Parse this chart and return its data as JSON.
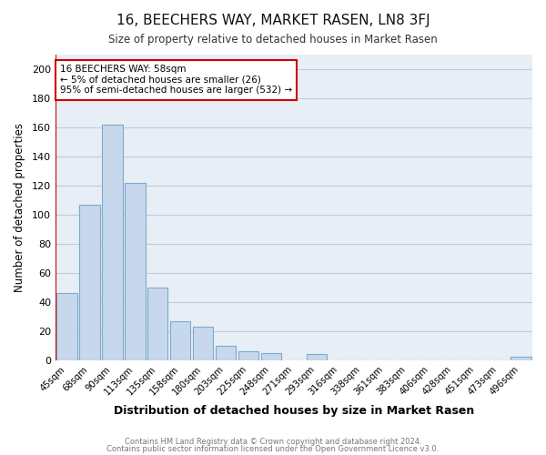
{
  "title": "16, BEECHERS WAY, MARKET RASEN, LN8 3FJ",
  "subtitle": "Size of property relative to detached houses in Market Rasen",
  "xlabel": "Distribution of detached houses by size in Market Rasen",
  "ylabel": "Number of detached properties",
  "bar_color": "#c8d8ec",
  "bar_edge_color": "#7aabcc",
  "annotation_line_color": "#cc0000",
  "categories": [
    "45sqm",
    "68sqm",
    "90sqm",
    "113sqm",
    "135sqm",
    "158sqm",
    "180sqm",
    "203sqm",
    "225sqm",
    "248sqm",
    "271sqm",
    "293sqm",
    "316sqm",
    "338sqm",
    "361sqm",
    "383sqm",
    "406sqm",
    "428sqm",
    "451sqm",
    "473sqm",
    "496sqm"
  ],
  "values": [
    46,
    107,
    162,
    122,
    50,
    27,
    23,
    10,
    6,
    5,
    0,
    4,
    0,
    0,
    0,
    0,
    0,
    0,
    0,
    0,
    2
  ],
  "ylim": [
    0,
    210
  ],
  "yticks": [
    0,
    20,
    40,
    60,
    80,
    100,
    120,
    140,
    160,
    180,
    200
  ],
  "footer_line1": "Contains HM Land Registry data © Crown copyright and database right 2024.",
  "footer_line2": "Contains public sector information licensed under the Open Government Licence v3.0.",
  "box_text_line1": "16 BEECHERS WAY: 58sqm",
  "box_text_line2": "← 5% of detached houses are smaller (26)",
  "box_text_line3": "95% of semi-detached houses are larger (532) →",
  "plot_bg_color": "#e8eef5",
  "fig_bg_color": "#ffffff",
  "grid_color": "#c0ccd8"
}
